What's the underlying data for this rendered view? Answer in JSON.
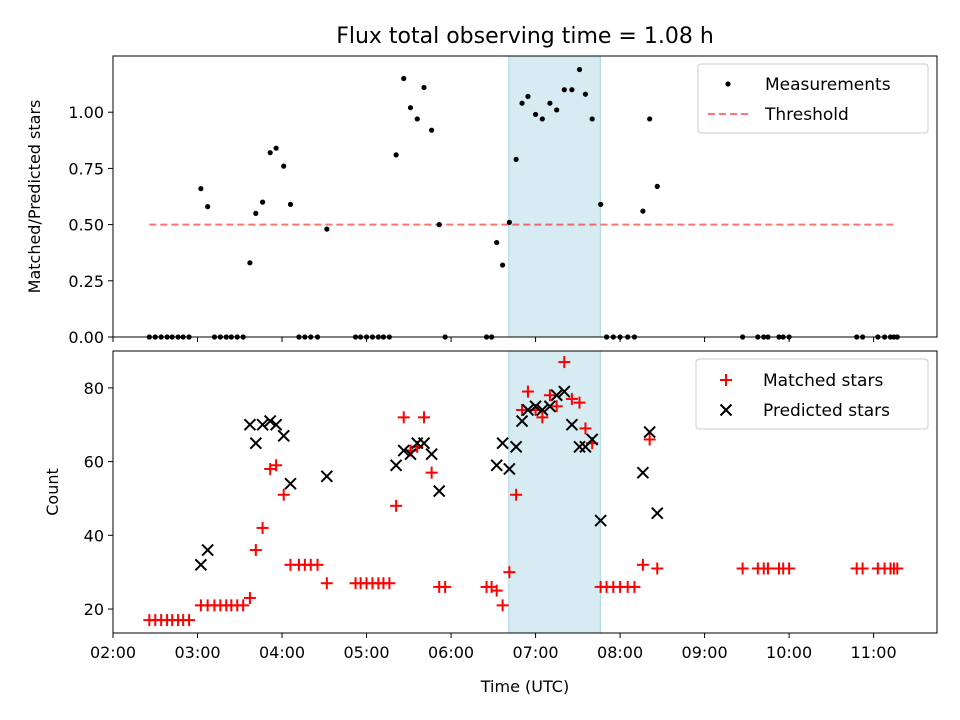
{
  "chart_data": [
    {
      "type": "scatter",
      "title": "Flux total observing time = 1.08 h",
      "ylabel": "Matched/Predicted stars",
      "xlim_hours": [
        2.0,
        11.75
      ],
      "ylim": [
        0,
        1.25
      ],
      "yticks": [
        0.0,
        0.25,
        0.5,
        0.75,
        1.0
      ],
      "ytick_labels": [
        "0.00",
        "0.25",
        "0.50",
        "0.75",
        "1.00"
      ],
      "highlight_span_hours": [
        6.683,
        7.767
      ],
      "legend": {
        "position": "top-right",
        "entries": [
          "Measurements",
          "Threshold"
        ]
      },
      "threshold": {
        "name": "Threshold",
        "value": 0.5,
        "x_range_hours": [
          2.43,
          11.28
        ]
      },
      "series": [
        {
          "name": "Measurements",
          "x_hours": [
            2.43,
            2.5,
            2.57,
            2.64,
            2.7,
            2.77,
            2.83,
            2.9,
            3.04,
            3.12,
            3.2,
            3.27,
            3.34,
            3.4,
            3.47,
            3.54,
            3.62,
            3.69,
            3.77,
            3.86,
            3.93,
            4.02,
            4.1,
            4.2,
            4.27,
            4.34,
            4.42,
            4.53,
            4.87,
            4.93,
            5.0,
            5.07,
            5.14,
            5.2,
            5.27,
            5.35,
            5.44,
            5.52,
            5.6,
            5.68,
            5.77,
            5.86,
            5.93,
            6.42,
            6.48,
            6.54,
            6.61,
            6.69,
            6.77,
            6.84,
            6.91,
            7.0,
            7.08,
            7.17,
            7.25,
            7.34,
            7.43,
            7.52,
            7.59,
            7.67,
            7.77,
            7.84,
            7.92,
            8.0,
            8.09,
            8.17,
            8.27,
            8.35,
            8.44,
            9.45,
            9.63,
            9.7,
            9.75,
            9.88,
            9.93,
            10.0,
            10.8,
            10.87,
            11.05,
            11.13,
            11.2,
            11.24,
            11.28
          ],
          "y": [
            0,
            0,
            0,
            0,
            0,
            0,
            0,
            0,
            0.66,
            0.58,
            0,
            0,
            0,
            0,
            0,
            0,
            0.33,
            0.55,
            0.6,
            0.82,
            0.84,
            0.76,
            0.59,
            0,
            0,
            0,
            0,
            0.48,
            0,
            0,
            0,
            0,
            0,
            0,
            0,
            0.81,
            1.15,
            1.02,
            0.97,
            1.11,
            0.92,
            0.5,
            0,
            0,
            0,
            0.42,
            0.32,
            0.51,
            0.79,
            1.04,
            1.07,
            0.99,
            0.97,
            1.04,
            1.01,
            1.1,
            1.1,
            1.19,
            1.08,
            0.97,
            0.59,
            0,
            0,
            0,
            0,
            0,
            0.56,
            0.97,
            0.67,
            0,
            0,
            0,
            0,
            0,
            0,
            0,
            0,
            0,
            0,
            0,
            0,
            0,
            0
          ]
        }
      ]
    },
    {
      "type": "scatter",
      "xlabel": "Time (UTC)",
      "ylabel": "Count",
      "xlim_hours": [
        2.0,
        11.75
      ],
      "ylim": [
        13.5,
        90
      ],
      "yticks": [
        20,
        40,
        60,
        80
      ],
      "ytick_labels": [
        "20",
        "40",
        "60",
        "80"
      ],
      "xticks_hours": [
        2,
        3,
        4,
        5,
        6,
        7,
        8,
        9,
        10,
        11
      ],
      "xtick_labels": [
        "02:00",
        "03:00",
        "04:00",
        "05:00",
        "06:00",
        "07:00",
        "08:00",
        "09:00",
        "10:00",
        "11:00"
      ],
      "highlight_span_hours": [
        6.683,
        7.767
      ],
      "legend": {
        "position": "top-right",
        "entries": [
          "Matched stars",
          "Predicted stars"
        ]
      },
      "series": [
        {
          "name": "Matched stars",
          "marker": "+",
          "x_hours": [
            2.43,
            2.5,
            2.57,
            2.64,
            2.7,
            2.77,
            2.83,
            2.9,
            3.04,
            3.12,
            3.2,
            3.27,
            3.34,
            3.4,
            3.47,
            3.54,
            3.62,
            3.69,
            3.77,
            3.86,
            3.93,
            4.02,
            4.1,
            4.2,
            4.27,
            4.34,
            4.42,
            4.53,
            4.87,
            4.93,
            5.0,
            5.07,
            5.14,
            5.2,
            5.27,
            5.35,
            5.44,
            5.52,
            5.6,
            5.68,
            5.77,
            5.86,
            5.93,
            6.42,
            6.48,
            6.54,
            6.61,
            6.69,
            6.77,
            6.84,
            6.91,
            7.0,
            7.08,
            7.17,
            7.25,
            7.34,
            7.43,
            7.52,
            7.59,
            7.67,
            7.77,
            7.84,
            7.92,
            8.0,
            8.09,
            8.17,
            8.27,
            8.35,
            8.44,
            9.45,
            9.63,
            9.7,
            9.75,
            9.88,
            9.93,
            10.0,
            10.8,
            10.87,
            11.05,
            11.13,
            11.2,
            11.24,
            11.28
          ],
          "y": [
            17,
            17,
            17,
            17,
            17,
            17,
            17,
            17,
            21,
            21,
            21,
            21,
            21,
            21,
            21,
            21,
            23,
            36,
            42,
            58,
            59,
            51,
            32,
            32,
            32,
            32,
            32,
            27,
            27,
            27,
            27,
            27,
            27,
            27,
            27,
            48,
            72,
            63,
            64,
            72,
            57,
            26,
            26,
            26,
            26,
            25,
            21,
            30,
            51,
            74,
            79,
            74,
            72,
            78,
            75,
            87,
            77,
            76,
            69,
            65,
            26,
            26,
            26,
            26,
            26,
            26,
            32,
            66,
            31,
            31,
            31,
            31,
            31,
            31,
            31,
            31,
            31,
            31,
            31,
            31,
            31,
            31,
            31
          ]
        },
        {
          "name": "Predicted stars",
          "marker": "x",
          "x_hours": [
            3.04,
            3.12,
            3.62,
            3.69,
            3.77,
            3.86,
            3.93,
            4.02,
            4.1,
            4.53,
            5.35,
            5.44,
            5.52,
            5.6,
            5.68,
            5.77,
            5.86,
            6.54,
            6.61,
            6.69,
            6.77,
            6.84,
            6.91,
            7.0,
            7.08,
            7.17,
            7.25,
            7.34,
            7.43,
            7.52,
            7.59,
            7.67,
            7.77,
            8.27,
            8.35,
            8.44
          ],
          "y": [
            32,
            36,
            70,
            65,
            70,
            71,
            70,
            67,
            54,
            56,
            59,
            63,
            62,
            65,
            65,
            62,
            52,
            59,
            65,
            58,
            64,
            71,
            74,
            75,
            74,
            75,
            78,
            79,
            70,
            64,
            64,
            66,
            44,
            57,
            68,
            46
          ]
        }
      ]
    }
  ]
}
